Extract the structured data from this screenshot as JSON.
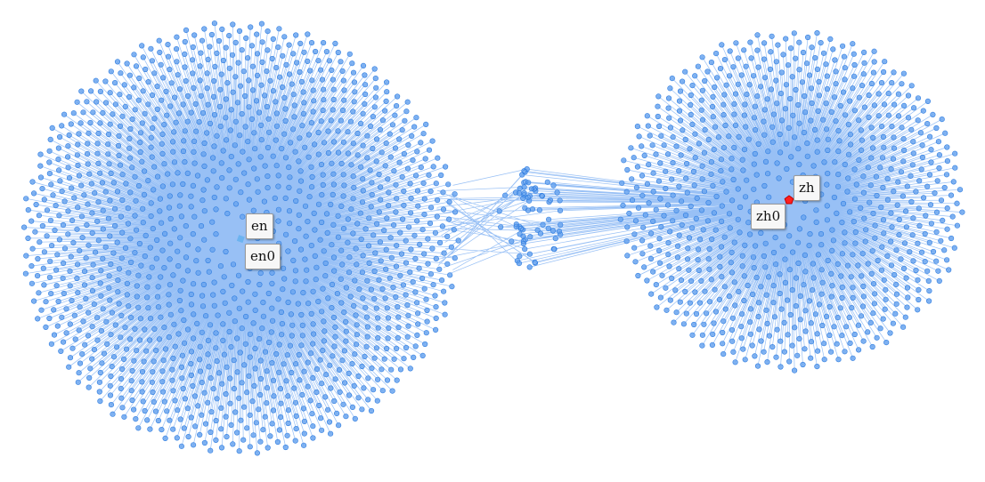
{
  "graph": {
    "edge_color": "#1a73e8",
    "node_color": "#6aa5ee",
    "node_stroke": "#2f7de0",
    "hub_en_color": "#6cb3f0",
    "hub_zh_color": "#ff1f1f",
    "clusters": [
      {
        "id": "en",
        "leaf_count": 1380
      },
      {
        "id": "zh",
        "leaf_count": 820
      },
      {
        "id": "bridge",
        "leaf_count": 70
      }
    ],
    "labels": {
      "en": "en",
      "en0": "en0",
      "zh": "zh",
      "zh0": "zh0"
    }
  }
}
